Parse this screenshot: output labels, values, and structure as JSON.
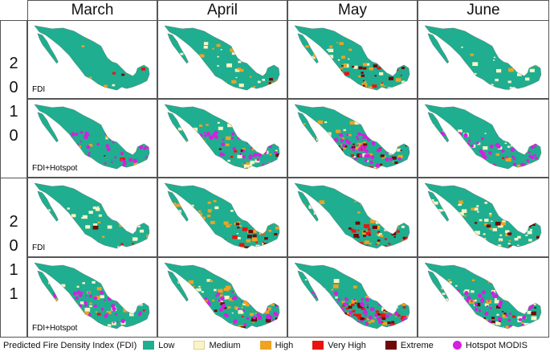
{
  "columns": [
    "March",
    "April",
    "May",
    "June"
  ],
  "years": [
    {
      "digits": [
        "2",
        "0",
        "1",
        "0"
      ]
    },
    {
      "digits": [
        "2",
        "0",
        "1",
        "1"
      ]
    }
  ],
  "row_labels": [
    "FDI",
    "FDI+Hotspot"
  ],
  "legend": {
    "title": "Predicted Fire Density Index (FDI)",
    "items": [
      {
        "label": "Low",
        "color": "#1fae8f"
      },
      {
        "label": "Medium",
        "color": "#fbf5c6"
      },
      {
        "label": "High",
        "color": "#efa321"
      },
      {
        "label": "Very High",
        "color": "#e8140f"
      },
      {
        "label": "Extreme",
        "color": "#6e0b05"
      }
    ],
    "hotspot": {
      "label": "Hotspot MODIS",
      "color": "#d61fe0"
    }
  },
  "panels": [
    {
      "year": "2010",
      "month": "March",
      "label": "FDI",
      "mix": {
        "Low": 0.93,
        "Medium": 0.02,
        "High": 0.03,
        "Very High": 0.01,
        "Extreme": 0.01
      },
      "hotspot": false
    },
    {
      "year": "2010",
      "month": "April",
      "label": "",
      "mix": {
        "Low": 0.55,
        "Medium": 0.2,
        "High": 0.2,
        "Very High": 0.02,
        "Extreme": 0.03
      },
      "hotspot": false
    },
    {
      "year": "2010",
      "month": "May",
      "label": "",
      "mix": {
        "Low": 0.35,
        "Medium": 0.2,
        "High": 0.25,
        "Very High": 0.08,
        "Extreme": 0.12
      },
      "hotspot": false
    },
    {
      "year": "2010",
      "month": "June",
      "label": "",
      "mix": {
        "Low": 0.78,
        "Medium": 0.15,
        "High": 0.05,
        "Very High": 0.01,
        "Extreme": 0.01
      },
      "hotspot": false
    },
    {
      "year": "2010",
      "month": "March",
      "label": "FDI+Hotspot",
      "mix": {
        "Low": 0.93,
        "Medium": 0.02,
        "High": 0.03,
        "Very High": 0.01,
        "Extreme": 0.01
      },
      "hotspot": true
    },
    {
      "year": "2010",
      "month": "April",
      "label": "",
      "mix": {
        "Low": 0.55,
        "Medium": 0.2,
        "High": 0.2,
        "Very High": 0.02,
        "Extreme": 0.03
      },
      "hotspot": true
    },
    {
      "year": "2010",
      "month": "May",
      "label": "",
      "mix": {
        "Low": 0.35,
        "Medium": 0.2,
        "High": 0.25,
        "Very High": 0.08,
        "Extreme": 0.12
      },
      "hotspot": true
    },
    {
      "year": "2010",
      "month": "June",
      "label": "",
      "mix": {
        "Low": 0.78,
        "Medium": 0.15,
        "High": 0.05,
        "Very High": 0.01,
        "Extreme": 0.01
      },
      "hotspot": true
    },
    {
      "year": "2011",
      "month": "March",
      "label": "FDI",
      "mix": {
        "Low": 0.6,
        "Medium": 0.22,
        "High": 0.15,
        "Very High": 0.02,
        "Extreme": 0.01
      },
      "hotspot": false
    },
    {
      "year": "2011",
      "month": "April",
      "label": "",
      "mix": {
        "Low": 0.3,
        "Medium": 0.15,
        "High": 0.35,
        "Very High": 0.05,
        "Extreme": 0.15
      },
      "hotspot": false
    },
    {
      "year": "2011",
      "month": "May",
      "label": "",
      "mix": {
        "Low": 0.15,
        "Medium": 0.1,
        "High": 0.25,
        "Very High": 0.3,
        "Extreme": 0.2
      },
      "hotspot": false
    },
    {
      "year": "2011",
      "month": "June",
      "label": "",
      "mix": {
        "Low": 0.35,
        "Medium": 0.4,
        "High": 0.15,
        "Very High": 0.02,
        "Extreme": 0.08
      },
      "hotspot": false
    },
    {
      "year": "2011",
      "month": "March",
      "label": "FDI+Hotspot",
      "mix": {
        "Low": 0.6,
        "Medium": 0.22,
        "High": 0.15,
        "Very High": 0.02,
        "Extreme": 0.01
      },
      "hotspot": true
    },
    {
      "year": "2011",
      "month": "April",
      "label": "",
      "mix": {
        "Low": 0.3,
        "Medium": 0.15,
        "High": 0.35,
        "Very High": 0.05,
        "Extreme": 0.15
      },
      "hotspot": true
    },
    {
      "year": "2011",
      "month": "May",
      "label": "",
      "mix": {
        "Low": 0.15,
        "Medium": 0.1,
        "High": 0.25,
        "Very High": 0.3,
        "Extreme": 0.2
      },
      "hotspot": true
    },
    {
      "year": "2011",
      "month": "June",
      "label": "",
      "mix": {
        "Low": 0.35,
        "Medium": 0.4,
        "High": 0.15,
        "Very High": 0.02,
        "Extreme": 0.08
      },
      "hotspot": true
    }
  ]
}
